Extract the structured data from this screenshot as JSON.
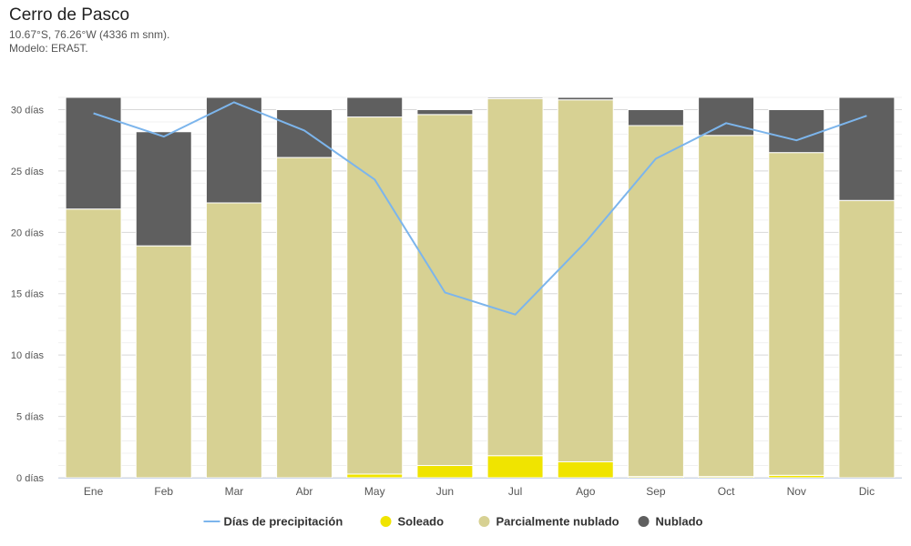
{
  "header": {
    "title": "Cerro de Pasco",
    "coords": "10.67°S, 76.26°W (4336 m snm).",
    "model": "Modelo: ERA5T."
  },
  "chart_data": {
    "type": "bar",
    "stacked": true,
    "categories": [
      "Ene",
      "Feb",
      "Mar",
      "Abr",
      "May",
      "Jun",
      "Jul",
      "Ago",
      "Sep",
      "Oct",
      "Nov",
      "Dic"
    ],
    "y_unit_suffix": " días",
    "ylim": [
      0,
      31
    ],
    "yticks": [
      0,
      5,
      10,
      15,
      20,
      25,
      30
    ],
    "series": [
      {
        "name": "Soleado",
        "color": "#f0e400",
        "values": [
          0,
          0,
          0,
          0,
          0.3,
          1.0,
          1.8,
          1.3,
          0.1,
          0.1,
          0.2,
          0
        ]
      },
      {
        "name": "Parcialmente nublado",
        "color": "#d7d193",
        "values": [
          21.9,
          18.9,
          22.4,
          26.1,
          29.1,
          28.6,
          29.1,
          29.5,
          28.6,
          27.8,
          26.3,
          22.6
        ]
      },
      {
        "name": "Nublado",
        "color": "#5f5f5f",
        "values": [
          9.1,
          9.3,
          8.6,
          3.9,
          1.6,
          0.4,
          0.1,
          0.2,
          1.3,
          3.1,
          3.5,
          8.4
        ]
      }
    ],
    "line": {
      "name": "Días de precipitación",
      "color": "#7cb5ec",
      "values": [
        29.7,
        27.8,
        30.6,
        28.3,
        24.3,
        15.1,
        13.3,
        19.2,
        26.0,
        28.9,
        27.5,
        29.5
      ]
    },
    "legend_position": "bottom-center",
    "grid": true
  }
}
